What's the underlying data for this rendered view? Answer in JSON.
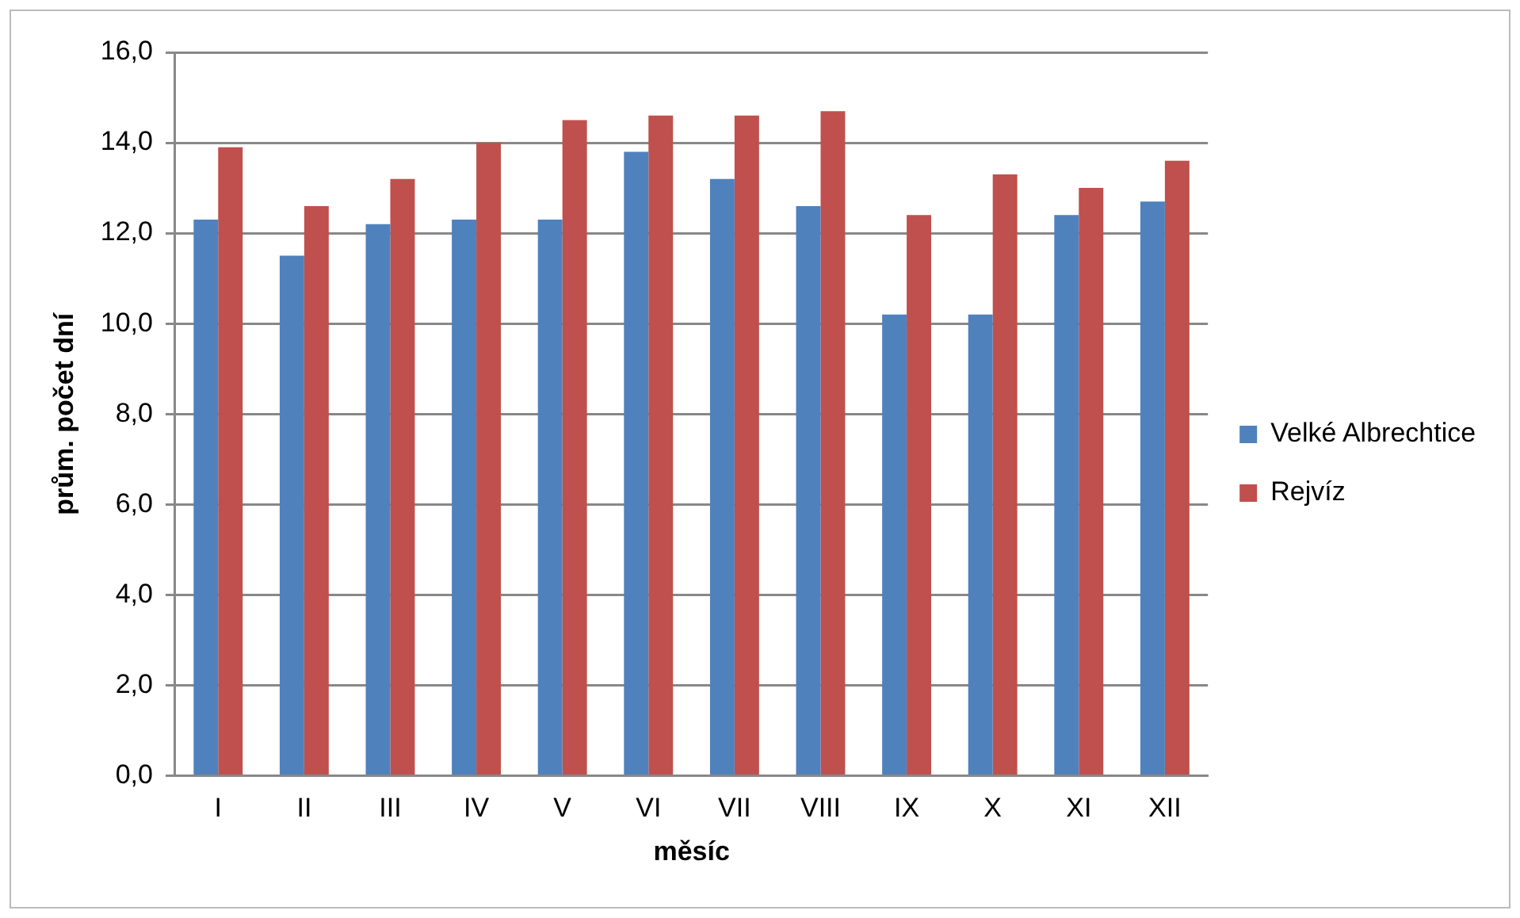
{
  "chart_data": {
    "type": "bar",
    "xlabel": "měsíc",
    "ylabel": "prům. počet dní",
    "categories": [
      "I",
      "II",
      "III",
      "IV",
      "V",
      "VI",
      "VII",
      "VIII",
      "IX",
      "X",
      "XI",
      "XII"
    ],
    "series": [
      {
        "name": "Velké Albrechtice",
        "color": "#4f81bd",
        "values": [
          12.3,
          11.5,
          12.2,
          12.3,
          12.3,
          13.8,
          13.2,
          12.6,
          10.2,
          10.2,
          12.4,
          12.7
        ]
      },
      {
        "name": "Rejvíz",
        "color": "#c0504d",
        "values": [
          13.9,
          12.6,
          13.2,
          14.0,
          14.5,
          14.6,
          14.6,
          14.7,
          12.4,
          13.3,
          13.0,
          13.6
        ]
      }
    ],
    "ylim": [
      0,
      16
    ],
    "yticks": [
      {
        "value": 0,
        "label": "0,0"
      },
      {
        "value": 2,
        "label": "2,0"
      },
      {
        "value": 4,
        "label": "4,0"
      },
      {
        "value": 6,
        "label": "6,0"
      },
      {
        "value": 8,
        "label": "8,0"
      },
      {
        "value": 10,
        "label": "10,0"
      },
      {
        "value": 12,
        "label": "12,0"
      },
      {
        "value": 14,
        "label": "14,0"
      },
      {
        "value": 16,
        "label": "16,0"
      }
    ],
    "grid": "y",
    "legend": "right"
  }
}
